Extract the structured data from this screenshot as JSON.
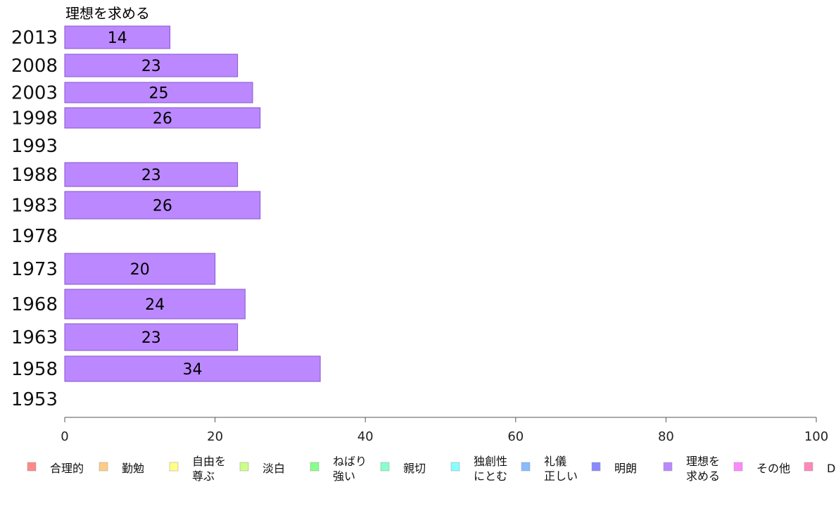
{
  "chart_data": {
    "type": "bar",
    "orientation": "horizontal",
    "title": "理想を求める",
    "categories": [
      "2013",
      "2008",
      "2003",
      "1998",
      "1993",
      "1988",
      "1983",
      "1978",
      "1973",
      "1968",
      "1963",
      "1958",
      "1953"
    ],
    "values": [
      14,
      23,
      25,
      26,
      null,
      23,
      26,
      null,
      20,
      24,
      23,
      34,
      null
    ],
    "xlim": [
      0,
      100
    ],
    "xticks": [
      "0",
      "20",
      "40",
      "60",
      "80",
      "100"
    ],
    "bar_color": "#bb88ff",
    "bar_stroke": "#8855cc",
    "grid": false,
    "legend_position": "bottom",
    "legend": [
      {
        "label": "合理的",
        "color": "#ff8888"
      },
      {
        "label": "勤勉",
        "color": "#ffcc88"
      },
      {
        "label": "自由を尊ぶ",
        "lines": [
          "自由を",
          "尊ぶ"
        ],
        "color": "#ffff88"
      },
      {
        "label": "淡白",
        "color": "#ccff88"
      },
      {
        "label": "ねばり強い",
        "lines": [
          "ねばり",
          "強い"
        ],
        "color": "#88ff88"
      },
      {
        "label": "親切",
        "color": "#88ffcc"
      },
      {
        "label": "独創性にとむ",
        "lines": [
          "独創性",
          "にとむ"
        ],
        "color": "#88ffff"
      },
      {
        "label": "礼儀正しい",
        "lines": [
          "礼儀",
          "正しい"
        ],
        "color": "#88bbff"
      },
      {
        "label": "明朗",
        "color": "#8888ff"
      },
      {
        "label": "理想を求める",
        "lines": [
          "理想を",
          "求める"
        ],
        "color": "#bb88ff"
      },
      {
        "label": "その他",
        "color": "#ff88ff"
      },
      {
        "label": "D",
        "color": "#ff88bb"
      }
    ]
  }
}
